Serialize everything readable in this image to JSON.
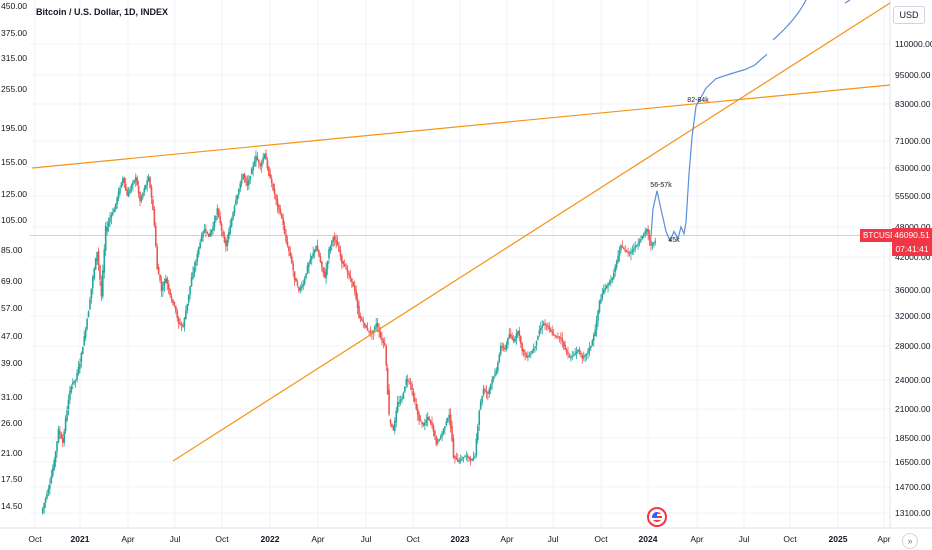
{
  "title": "Bitcoin / U.S. Dollar, 1D, INDEX",
  "unit_button": "USD",
  "symbol_tag": "BTCUSD",
  "price_tag": {
    "price": "46090.51",
    "countdown": "07:41:41"
  },
  "nav_button": "»",
  "colors": {
    "trendline": "#f7931a",
    "projection": "#5b8ed8",
    "up": "#26a69a",
    "down": "#ef5350",
    "price_line": "#f23645"
  },
  "chart_data": {
    "type": "line",
    "left_axis_ticks": [
      "450.00",
      "375.00",
      "315.00",
      "255.00",
      "195.00",
      "155.00",
      "125.00",
      "105.00",
      "85.00",
      "69.00",
      "57.00",
      "47.00",
      "39.00",
      "31.00",
      "26.00",
      "21.00",
      "17.50",
      "14.50"
    ],
    "right_axis_ticks": [
      "110000.00",
      "95000.00",
      "83000.00",
      "71000.00",
      "63000.00",
      "55500.00",
      "48000.00",
      "42000.00",
      "36000.00",
      "32000.00",
      "28000.00",
      "24000.00",
      "21000.00",
      "18500.00",
      "16500.00",
      "14700.00",
      "13100.00"
    ],
    "x_ticks": [
      "Oct",
      "2021",
      "Apr",
      "Jul",
      "Oct",
      "2022",
      "Apr",
      "Jul",
      "Oct",
      "2023",
      "Apr",
      "Jul",
      "Oct",
      "2024",
      "Apr",
      "Jul",
      "Oct",
      "2025",
      "Apr"
    ],
    "last_price": 46090.51,
    "annotations": [
      "56-57k",
      "45k",
      "82-84k"
    ],
    "series": [
      {
        "values": [
          13100,
          14000,
          15000,
          16500,
          19000,
          18000,
          21000,
          23500,
          24000,
          26000,
          29000,
          33000,
          38000,
          43000,
          35000,
          47000,
          50000,
          52000,
          56000,
          60000,
          55000,
          58000,
          60000,
          54000,
          57000,
          60000,
          52000,
          40000,
          36000,
          38000,
          35000,
          33500,
          31000,
          30500,
          34000,
          38000,
          41000,
          45000,
          47500,
          46000,
          48000,
          52000,
          47000,
          44000,
          48000,
          53000,
          57000,
          61000,
          58000,
          62000,
          66000,
          63000,
          67000,
          61000,
          57000,
          53000,
          50000,
          45000,
          42000,
          38000,
          36000,
          37000,
          40000,
          42000,
          44000,
          41000,
          38000,
          43000,
          46000,
          44000,
          41000,
          39500,
          38000,
          36000,
          32000,
          31000,
          30000,
          29500,
          31000,
          29000,
          28000,
          20000,
          19000,
          21500,
          22000,
          24000,
          23500,
          21500,
          20000,
          19500,
          20200,
          19500,
          18000,
          18500,
          19500,
          20500,
          17000,
          16500,
          16800,
          17000,
          16600,
          17000,
          21000,
          23000,
          22500,
          24000,
          25000,
          28000,
          27500,
          29500,
          28500,
          30000,
          27500,
          26500,
          27000,
          28000,
          30000,
          31000,
          30500,
          29500,
          29200,
          29000,
          27500,
          26500,
          26800,
          27500,
          26500,
          27000,
          28000,
          30000,
          34000,
          36000,
          37000,
          38000,
          41000,
          44000,
          43000,
          42500,
          43500,
          44500,
          46000,
          47500,
          44000,
          45000
        ],
        "note": "BTCUSD daily closes (approximate)"
      },
      {
        "values": [
          46000,
          52000,
          56500,
          52000,
          47000,
          45000,
          47000,
          45500,
          48000,
          46500,
          49000,
          61000,
          72000,
          83000,
          90000,
          94000,
          96000,
          98000,
          100000,
          103000,
          105000
        ],
        "note": "projected path"
      }
    ],
    "grid": true
  }
}
